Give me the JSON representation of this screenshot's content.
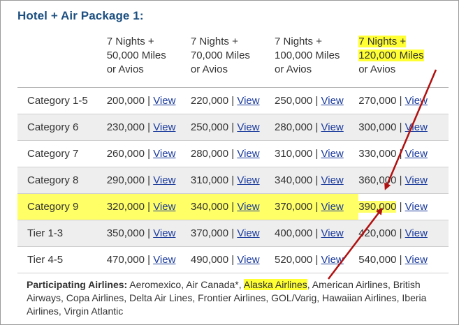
{
  "title": "Hotel + Air Package 1:",
  "headers": [
    "",
    "7 Nights +\n50,000 Miles\nor Avios",
    "7 Nights +\n70,000 Miles\nor Avios",
    "7 Nights +\n100,000 Miles\nor Avios",
    "7 Nights +\n120,000 Miles\nor Avios"
  ],
  "header_last_top": "7 Nights +",
  "header_last_mid": "120,000 Miles",
  "header_last_bottom": "or Avios",
  "link_label": "View",
  "separator": "|",
  "rows": [
    {
      "label": "Category 1-5",
      "values": [
        "200,000",
        "220,000",
        "250,000",
        "270,000"
      ]
    },
    {
      "label": "Category 6",
      "values": [
        "230,000",
        "250,000",
        "280,000",
        "300,000"
      ]
    },
    {
      "label": "Category 7",
      "values": [
        "260,000",
        "280,000",
        "310,000",
        "330,000"
      ]
    },
    {
      "label": "Category 8",
      "values": [
        "290,000",
        "310,000",
        "340,000",
        "360,000"
      ]
    },
    {
      "label": "Category 9",
      "values": [
        "320,000",
        "340,000",
        "370,000",
        "390,000"
      ]
    },
    {
      "label": "Tier 1-3",
      "values": [
        "350,000",
        "370,000",
        "400,000",
        "420,000"
      ]
    },
    {
      "label": "Tier 4-5",
      "values": [
        "470,000",
        "490,000",
        "520,000",
        "540,000"
      ]
    }
  ],
  "airlines": {
    "label": "Participating Airlines:",
    "before": " Aeromexico, Air Canada*, ",
    "highlight": "Alaska Airlines",
    "after": ", American Airlines, British Airways, Copa Airlines, Delta Air Lines, Frontier Airlines, GOL/Varig, Hawaiian Airlines, Iberia Airlines, Virgin Atlantic"
  },
  "colors": {
    "title": "#1c4f80",
    "link": "#1a3a9c",
    "highlight": "#ffff66",
    "arrow": "#b01010"
  }
}
